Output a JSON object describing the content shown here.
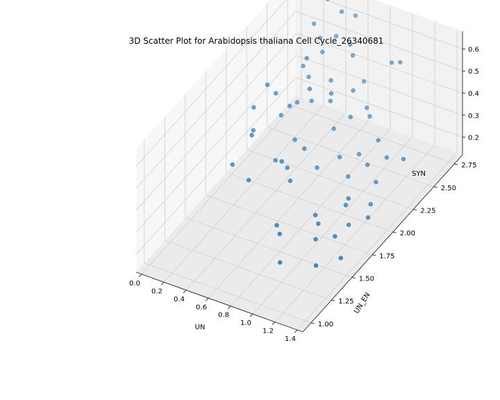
{
  "chart_data": {
    "type": "scatter",
    "title": "3D Scatter Plot for Arabidopsis thaliana Cell Cycle_26340681",
    "xlabel": "UN",
    "ylabel": "UN_EN",
    "zlabel": "SYN",
    "xlim": [
      -0.05,
      1.45
    ],
    "ylim": [
      0.9,
      2.85
    ],
    "zlim": [
      0.12,
      0.68
    ],
    "xticks": [
      "0.0",
      "0.2",
      "0.4",
      "0.6",
      "0.8",
      "1.0",
      "1.2",
      "1.4"
    ],
    "yticks": [
      "1.00",
      "1.25",
      "1.50",
      "1.75",
      "2.00",
      "2.25",
      "2.50",
      "2.75"
    ],
    "zticks": [
      "0.2",
      "0.3",
      "0.4",
      "0.5",
      "0.6"
    ],
    "grid": true,
    "point_color": "#1f77b4",
    "points": [
      [
        0.05,
        2.2,
        0.35
      ],
      [
        0.1,
        2.3,
        0.42
      ],
      [
        0.12,
        2.1,
        0.3
      ],
      [
        0.15,
        2.4,
        0.25
      ],
      [
        0.18,
        2.0,
        0.33
      ],
      [
        0.08,
        1.9,
        0.22
      ],
      [
        0.2,
        2.6,
        0.4
      ],
      [
        0.22,
        2.5,
        0.28
      ],
      [
        0.25,
        2.2,
        0.45
      ],
      [
        0.28,
        2.7,
        0.5
      ],
      [
        0.3,
        2.3,
        0.36
      ],
      [
        0.32,
        2.1,
        0.2
      ],
      [
        0.35,
        2.5,
        0.31
      ],
      [
        0.38,
        2.4,
        0.55
      ],
      [
        0.4,
        2.8,
        0.6
      ],
      [
        0.42,
        2.2,
        0.27
      ],
      [
        0.45,
        2.6,
        0.38
      ],
      [
        0.48,
        2.3,
        0.47
      ],
      [
        0.5,
        2.0,
        0.24
      ],
      [
        0.52,
        2.5,
        0.34
      ],
      [
        0.55,
        2.7,
        0.52
      ],
      [
        0.58,
        2.1,
        0.3
      ],
      [
        0.6,
        2.4,
        0.43
      ],
      [
        0.62,
        2.2,
        0.18
      ],
      [
        0.65,
        2.6,
        0.37
      ],
      [
        0.3,
        2.7,
        0.44
      ],
      [
        0.35,
        2.8,
        0.48
      ],
      [
        0.45,
        2.9,
        0.55
      ],
      [
        0.5,
        2.8,
        0.42
      ],
      [
        0.25,
        2.6,
        0.36
      ],
      [
        0.15,
        2.8,
        0.5
      ],
      [
        0.2,
        2.9,
        0.58
      ],
      [
        0.6,
        2.8,
        0.32
      ],
      [
        0.7,
        2.7,
        0.26
      ],
      [
        0.55,
        2.5,
        0.22
      ],
      [
        0.7,
        2.5,
        0.3
      ],
      [
        0.75,
        2.3,
        0.21
      ],
      [
        0.8,
        2.6,
        0.28
      ],
      [
        0.85,
        2.4,
        0.2
      ],
      [
        0.9,
        2.2,
        0.19
      ],
      [
        0.95,
        2.5,
        0.24
      ],
      [
        1.0,
        2.3,
        0.22
      ],
      [
        1.05,
        2.0,
        0.2
      ],
      [
        1.1,
        2.4,
        0.23
      ],
      [
        1.15,
        2.2,
        0.21
      ],
      [
        0.9,
        1.8,
        0.18
      ],
      [
        1.0,
        1.7,
        0.2
      ],
      [
        1.1,
        1.9,
        0.22
      ],
      [
        1.2,
        1.8,
        0.19
      ],
      [
        1.25,
        2.0,
        0.21
      ],
      [
        1.05,
        1.6,
        0.18
      ],
      [
        1.15,
        1.7,
        0.17
      ],
      [
        1.3,
        1.9,
        0.2
      ],
      [
        1.35,
        1.5,
        0.19
      ],
      [
        1.2,
        1.4,
        0.17
      ],
      [
        0.7,
        1.6,
        0.18
      ],
      [
        0.8,
        1.5,
        0.2
      ],
      [
        0.95,
        1.3,
        0.18
      ],
      [
        1.25,
        2.4,
        0.25
      ],
      [
        0.45,
        2.0,
        0.26
      ],
      [
        0.85,
        2.8,
        0.45
      ],
      [
        1.0,
        2.7,
        0.52
      ],
      [
        0.3,
        1.8,
        0.23
      ],
      [
        0.6,
        1.9,
        0.24
      ]
    ]
  }
}
